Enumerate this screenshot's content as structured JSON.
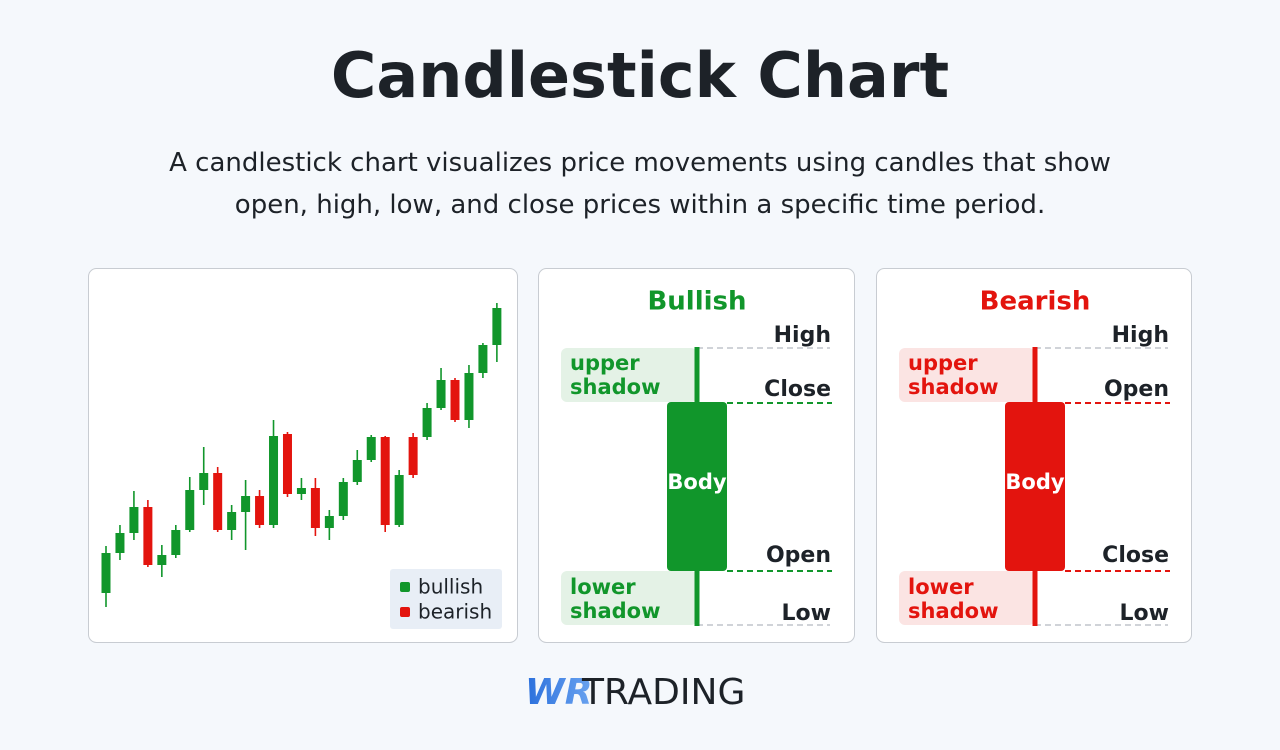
{
  "header": {
    "title": "Candlestick Chart",
    "subtitle": "A candlestick chart visualizes price movements using candles that show open, high, low, and close prices within a specific time period."
  },
  "chart_data": {
    "type": "candlestick",
    "open": [
      47,
      87,
      107,
      133,
      75,
      85,
      110,
      150,
      167,
      110,
      128,
      144,
      115,
      206,
      146,
      152,
      112,
      124,
      158,
      180,
      203,
      115,
      203,
      203,
      232,
      260,
      220,
      267,
      295
    ],
    "high": [
      94,
      115,
      149,
      140,
      95,
      115,
      163,
      193,
      173,
      135,
      160,
      150,
      220,
      208,
      162,
      162,
      130,
      162,
      190,
      205,
      204,
      170,
      207,
      237,
      272,
      262,
      275,
      297,
      337
    ],
    "low": [
      33,
      80,
      100,
      73,
      63,
      82,
      108,
      135,
      108,
      100,
      90,
      112,
      112,
      143,
      140,
      104,
      100,
      120,
      155,
      178,
      108,
      113,
      162,
      200,
      230,
      218,
      212,
      262,
      278
    ],
    "close": [
      87,
      107,
      133,
      75,
      85,
      110,
      150,
      167,
      110,
      128,
      144,
      115,
      204,
      146,
      152,
      112,
      124,
      158,
      180,
      203,
      115,
      165,
      165,
      232,
      260,
      220,
      267,
      295,
      332
    ],
    "ylim": [
      20,
      345
    ],
    "legend": [
      {
        "name": "bullish",
        "color": "#11962b"
      },
      {
        "name": "bearish",
        "color": "#e3140e"
      }
    ]
  },
  "diagrams": [
    {
      "title": "Bullish",
      "color": "#11962b",
      "shade": "#e4f2e6",
      "high": "High",
      "upper": "Close",
      "lower": "Open",
      "low": "Low",
      "upper_shadow": "upper shadow",
      "lower_shadow": "lower shadow",
      "body": "Body"
    },
    {
      "title": "Bearish",
      "color": "#e3140e",
      "shade": "#fbe4e3",
      "high": "High",
      "upper": "Open",
      "lower": "Close",
      "low": "Low",
      "upper_shadow": "upper shadow",
      "lower_shadow": "lower shadow",
      "body": "Body"
    }
  ],
  "logo": {
    "mark": "WR",
    "text": "TRADING"
  }
}
